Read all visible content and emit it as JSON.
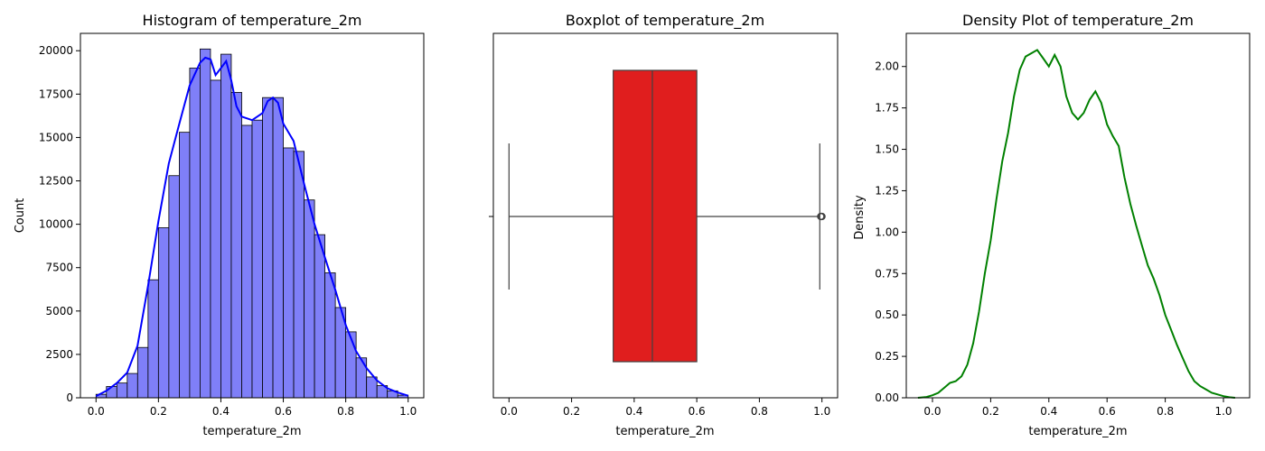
{
  "chart_data": [
    {
      "type": "bar",
      "title": "Histogram of temperature_2m",
      "xlabel": "temperature_2m",
      "ylabel": "Count",
      "xlim": [
        -0.05,
        1.05
      ],
      "ylim": [
        0,
        21000
      ],
      "xticks": [
        {
          "v": 0.0,
          "label": "0.0"
        },
        {
          "v": 0.2,
          "label": "0.2"
        },
        {
          "v": 0.4,
          "label": "0.4"
        },
        {
          "v": 0.6,
          "label": "0.6"
        },
        {
          "v": 0.8,
          "label": "0.8"
        },
        {
          "v": 1.0,
          "label": "1.0"
        }
      ],
      "yticks": [
        {
          "v": 0,
          "label": "0"
        },
        {
          "v": 2500,
          "label": "2500"
        },
        {
          "v": 5000,
          "label": "5000"
        },
        {
          "v": 7500,
          "label": "7500"
        },
        {
          "v": 10000,
          "label": "10000"
        },
        {
          "v": 12500,
          "label": "12500"
        },
        {
          "v": 15000,
          "label": "15000"
        },
        {
          "v": 17500,
          "label": "17500"
        },
        {
          "v": 20000,
          "label": "20000"
        }
      ],
      "bin_edges": [
        0.0,
        0.0333,
        0.0667,
        0.1,
        0.1333,
        0.1667,
        0.2,
        0.2333,
        0.2667,
        0.3,
        0.3333,
        0.3667,
        0.4,
        0.4333,
        0.4667,
        0.5,
        0.5333,
        0.5667,
        0.6,
        0.6333,
        0.6667,
        0.7,
        0.7333,
        0.7667,
        0.8,
        0.8333,
        0.8667,
        0.9,
        0.9333,
        0.9667,
        1.0
      ],
      "counts": [
        200,
        650,
        850,
        1400,
        2900,
        6800,
        9800,
        12800,
        15300,
        19000,
        20100,
        18300,
        19800,
        17600,
        15700,
        16000,
        17300,
        17300,
        14400,
        14200,
        11400,
        9400,
        7200,
        5200,
        3800,
        2300,
        1200,
        700,
        400,
        150
      ],
      "kde": {
        "x": [
          0.0,
          0.033,
          0.067,
          0.1,
          0.133,
          0.167,
          0.2,
          0.233,
          0.267,
          0.3,
          0.333,
          0.35,
          0.367,
          0.383,
          0.4,
          0.417,
          0.433,
          0.45,
          0.467,
          0.5,
          0.533,
          0.55,
          0.567,
          0.583,
          0.6,
          0.633,
          0.667,
          0.7,
          0.733,
          0.767,
          0.8,
          0.833,
          0.867,
          0.9,
          0.933,
          0.967,
          1.0
        ],
        "y": [
          100,
          400,
          850,
          1450,
          3000,
          6500,
          10200,
          13500,
          15800,
          18000,
          19300,
          19600,
          19500,
          18600,
          19000,
          19400,
          18300,
          16800,
          16200,
          16000,
          16400,
          17100,
          17300,
          17000,
          15800,
          14800,
          12300,
          10000,
          8100,
          6200,
          4200,
          2700,
          1700,
          1000,
          550,
          300,
          120
        ]
      },
      "bar_color": "#7f7ff8",
      "edge_color": "#000000",
      "line_color": "#0000ff",
      "grid": false
    },
    {
      "type": "box",
      "title": "Boxplot of temperature_2m",
      "xlabel": "temperature_2m",
      "xlim": [
        -0.05,
        1.05
      ],
      "xticks": [
        {
          "v": 0.0,
          "label": "0.0"
        },
        {
          "v": 0.2,
          "label": "0.2"
        },
        {
          "v": 0.4,
          "label": "0.4"
        },
        {
          "v": 0.6,
          "label": "0.6"
        },
        {
          "v": 0.8,
          "label": "0.8"
        },
        {
          "v": 1.0,
          "label": "1.0"
        }
      ],
      "whisker_low": 0.0,
      "q1": 0.333,
      "median": 0.458,
      "q3": 0.6,
      "whisker_high": 0.993,
      "outliers": [
        0.996,
        0.998,
        1.0
      ],
      "box_color": "#e01e1e",
      "line_color": "#404040",
      "grid": false
    },
    {
      "type": "line",
      "title": "Density Plot of temperature_2m",
      "xlabel": "temperature_2m",
      "ylabel": "Density",
      "xlim": [
        -0.09,
        1.09
      ],
      "ylim": [
        0,
        2.2
      ],
      "xticks": [
        {
          "v": 0.0,
          "label": "0.0"
        },
        {
          "v": 0.2,
          "label": "0.2"
        },
        {
          "v": 0.4,
          "label": "0.4"
        },
        {
          "v": 0.6,
          "label": "0.6"
        },
        {
          "v": 0.8,
          "label": "0.8"
        },
        {
          "v": 1.0,
          "label": "1.0"
        }
      ],
      "yticks": [
        {
          "v": 0.0,
          "label": "0.00"
        },
        {
          "v": 0.25,
          "label": "0.25"
        },
        {
          "v": 0.5,
          "label": "0.50"
        },
        {
          "v": 0.75,
          "label": "0.75"
        },
        {
          "v": 1.0,
          "label": "1.00"
        },
        {
          "v": 1.25,
          "label": "1.25"
        },
        {
          "v": 1.5,
          "label": "1.50"
        },
        {
          "v": 1.75,
          "label": "1.75"
        },
        {
          "v": 2.0,
          "label": "2.00"
        }
      ],
      "x": [
        -0.05,
        -0.02,
        0.0,
        0.02,
        0.04,
        0.06,
        0.08,
        0.1,
        0.12,
        0.14,
        0.16,
        0.18,
        0.2,
        0.22,
        0.24,
        0.26,
        0.28,
        0.3,
        0.32,
        0.34,
        0.36,
        0.38,
        0.4,
        0.42,
        0.44,
        0.46,
        0.48,
        0.5,
        0.52,
        0.54,
        0.56,
        0.58,
        0.6,
        0.62,
        0.64,
        0.66,
        0.68,
        0.7,
        0.72,
        0.74,
        0.76,
        0.78,
        0.8,
        0.82,
        0.84,
        0.86,
        0.88,
        0.9,
        0.92,
        0.94,
        0.96,
        0.98,
        1.0,
        1.02,
        1.04
      ],
      "y": [
        0.0,
        0.005,
        0.015,
        0.03,
        0.06,
        0.09,
        0.1,
        0.13,
        0.2,
        0.33,
        0.52,
        0.75,
        0.95,
        1.2,
        1.43,
        1.6,
        1.82,
        1.98,
        2.06,
        2.08,
        2.1,
        2.05,
        2.0,
        2.07,
        2.0,
        1.82,
        1.72,
        1.68,
        1.72,
        1.8,
        1.85,
        1.78,
        1.65,
        1.58,
        1.52,
        1.33,
        1.17,
        1.04,
        0.92,
        0.8,
        0.72,
        0.62,
        0.5,
        0.41,
        0.32,
        0.24,
        0.16,
        0.1,
        0.07,
        0.05,
        0.03,
        0.02,
        0.01,
        0.003,
        0.0
      ],
      "line_color": "#008000",
      "grid": false
    }
  ]
}
